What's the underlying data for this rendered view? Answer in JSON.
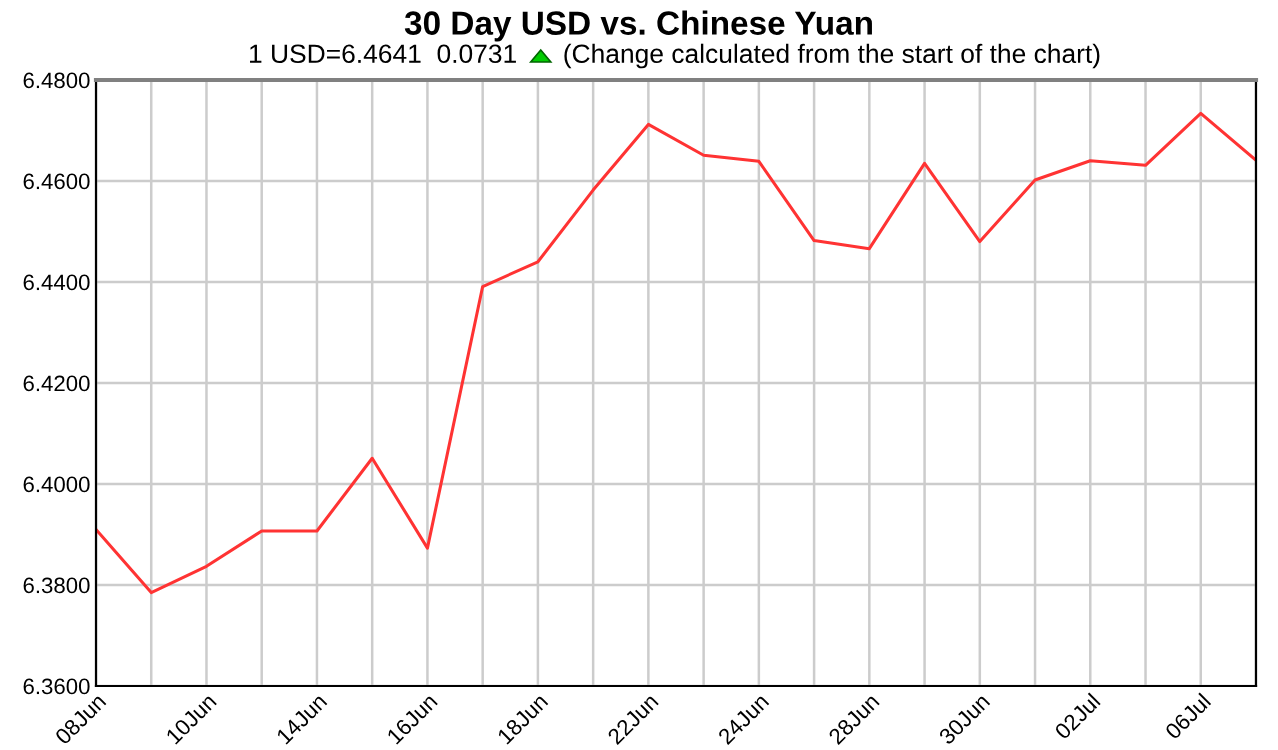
{
  "chart_data": {
    "type": "line",
    "title": "30 Day USD vs. Chinese Yuan",
    "subtitle": "1 USD=6.4641  0.0731",
    "annotations": [
      "(Change calculated from the start of the chart)"
    ],
    "categories": [
      "08Jun",
      null,
      "10Jun",
      null,
      "14Jun",
      null,
      "16Jun",
      null,
      "18Jun",
      null,
      "22Jun",
      null,
      "24Jun",
      null,
      "28Jun",
      null,
      "30Jun",
      null,
      "02Jul",
      null,
      "06Jul",
      null
    ],
    "series": [
      {
        "color": "#ff3333",
        "values": [
          6.391,
          6.3785,
          6.3837,
          6.3907,
          6.3907,
          6.4051,
          6.3873,
          6.4391,
          6.444,
          6.4582,
          6.4712,
          6.4651,
          6.4639,
          6.4482,
          6.4466,
          6.4635,
          6.448,
          6.4602,
          6.464,
          6.4631,
          6.4734,
          6.4641
        ]
      }
    ],
    "ylim": [
      6.36,
      6.48
    ],
    "yticks": [
      {
        "value": 6.36,
        "label": "6.3600"
      },
      {
        "value": 6.38,
        "label": "6.3800"
      },
      {
        "value": 6.4,
        "label": "6.4000"
      },
      {
        "value": 6.42,
        "label": "6.4200"
      },
      {
        "value": 6.44,
        "label": "6.4400"
      },
      {
        "value": 6.46,
        "label": "6.4600"
      },
      {
        "value": 6.48,
        "label": "6.4800"
      }
    ],
    "grid": true,
    "marker": "none",
    "line_style": "solid"
  }
}
